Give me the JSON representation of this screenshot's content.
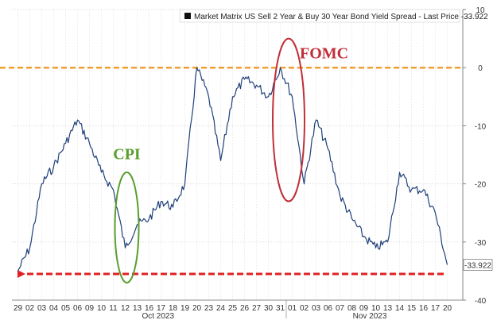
{
  "chart_data": {
    "type": "line",
    "legend": {
      "text": "Market Matrix US Sell 2 Year & Buy 30 Year Bond Yield Spread - Last Price -33.922",
      "placement": "top-right",
      "swatch_color": "#111111"
    },
    "last_price_label": "-33.922",
    "ylim": [
      -40,
      10
    ],
    "y_ticks": [
      "10",
      "0",
      "-10",
      "-20",
      "-30",
      "-40"
    ],
    "y_tick_values": [
      10,
      0,
      -10,
      -20,
      -30,
      -40
    ],
    "x_tick_labels": [
      "29",
      "02",
      "03",
      "04",
      "05",
      "06",
      "09",
      "10",
      "11",
      "12",
      "13",
      "16",
      "17",
      "18",
      "19",
      "20",
      "23",
      "24",
      "25",
      "26",
      "27",
      "30",
      "31",
      "01",
      "02",
      "03",
      "06",
      "07",
      "08",
      "09",
      "10",
      "13",
      "14",
      "15",
      "16",
      "17",
      "20"
    ],
    "month_labels": [
      "Oct 2023",
      "Nov 2023"
    ],
    "grid": true,
    "series": [
      {
        "color": "#1f3f7a",
        "x": [
          "09-29",
          "10-02",
          "10-03",
          "10-04",
          "10-05",
          "10-06",
          "10-09",
          "10-10",
          "10-11",
          "10-12",
          "10-13",
          "10-16",
          "10-17",
          "10-18",
          "10-19",
          "10-20",
          "10-23",
          "10-24",
          "10-25",
          "10-26",
          "10-27",
          "10-30",
          "10-31",
          "11-01",
          "11-02",
          "11-03",
          "11-06",
          "11-07",
          "11-08",
          "11-09",
          "11-10",
          "11-13",
          "11-14",
          "11-15",
          "11-16",
          "11-17",
          "11-20"
        ],
        "values": [
          -35,
          -31,
          -20,
          -17,
          -13,
          -9,
          -13,
          -18,
          -21,
          -31,
          -27,
          -26,
          -23,
          -24,
          -20,
          0,
          -5,
          -16,
          -5,
          -2,
          -3,
          -5,
          0,
          -5,
          -20,
          -9,
          -14,
          -22,
          -26,
          -29,
          -31,
          -30,
          -18,
          -21,
          -21,
          -25,
          -33.922
        ]
      }
    ],
    "reference_lines": [
      {
        "value": 0,
        "color": "#f0a030",
        "style": "dashed"
      },
      {
        "value": -35.5,
        "color": "#e02020",
        "style": "dashed-arrow"
      }
    ],
    "annotations": [
      {
        "text": "CPI",
        "color": "#5a9e2f",
        "shape": "ellipse"
      },
      {
        "text": "FOMC",
        "color": "#c0303a",
        "shape": "ellipse"
      }
    ]
  }
}
